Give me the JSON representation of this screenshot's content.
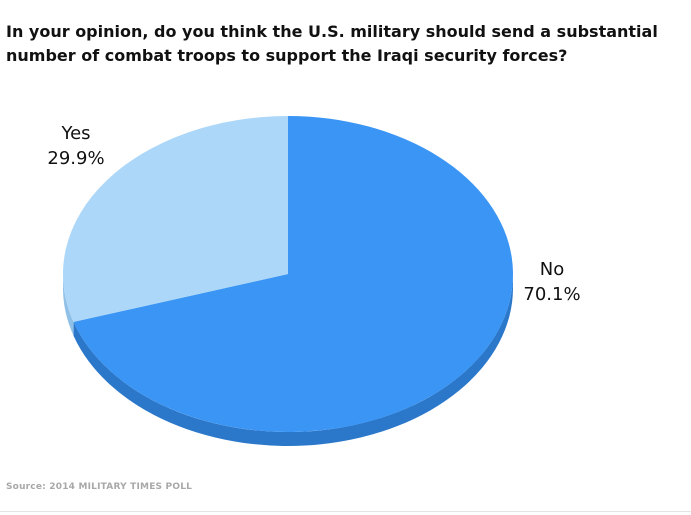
{
  "chart_data": {
    "type": "pie",
    "title": "In your opinion, do you think the U.S. military should send a substantial number of combat troops to support the Iraqi security forces?",
    "slices": [
      {
        "name": "No",
        "value": 70.1,
        "value_label": "70.1%",
        "color": "#3a95f5",
        "side_color": "#2b78cb"
      },
      {
        "name": "Yes",
        "value": 29.9,
        "value_label": "29.9%",
        "color": "#acd7f9",
        "side_color": "#8fc0e8"
      }
    ],
    "start_angle": "12 o'clock",
    "direction": "clockwise",
    "style": "3d-tilted",
    "legend": "none"
  },
  "source": "Source: 2014 MILITARY TIMES POLL"
}
